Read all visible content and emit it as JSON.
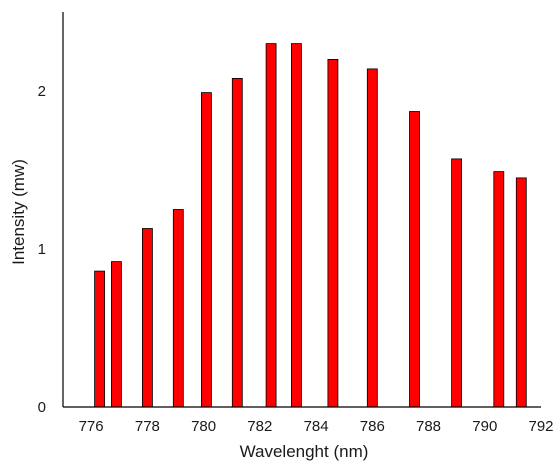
{
  "chart_data": {
    "type": "bar",
    "xlabel": "Wavelenght (nm)",
    "ylabel": "Intensity (mw)",
    "xlim": [
      775,
      792
    ],
    "ylim": [
      0,
      2.5
    ],
    "xticks": [
      "776",
      "778",
      "780",
      "782",
      "784",
      "786",
      "788",
      "790",
      "792"
    ],
    "yticks": [
      "0",
      "1",
      "2"
    ],
    "bar_color": "#ff0000",
    "bar_edge_color": "#000000",
    "grid": false,
    "legend": "none",
    "points": [
      {
        "x": 776.3,
        "y": 0.86
      },
      {
        "x": 776.9,
        "y": 0.92
      },
      {
        "x": 778.0,
        "y": 1.13
      },
      {
        "x": 779.1,
        "y": 1.25
      },
      {
        "x": 780.1,
        "y": 1.99
      },
      {
        "x": 781.2,
        "y": 2.08
      },
      {
        "x": 782.4,
        "y": 2.3
      },
      {
        "x": 783.3,
        "y": 2.3
      },
      {
        "x": 784.6,
        "y": 2.2
      },
      {
        "x": 786.0,
        "y": 2.14
      },
      {
        "x": 787.5,
        "y": 1.87
      },
      {
        "x": 789.0,
        "y": 1.57
      },
      {
        "x": 790.5,
        "y": 1.49
      },
      {
        "x": 791.3,
        "y": 1.45
      }
    ]
  }
}
